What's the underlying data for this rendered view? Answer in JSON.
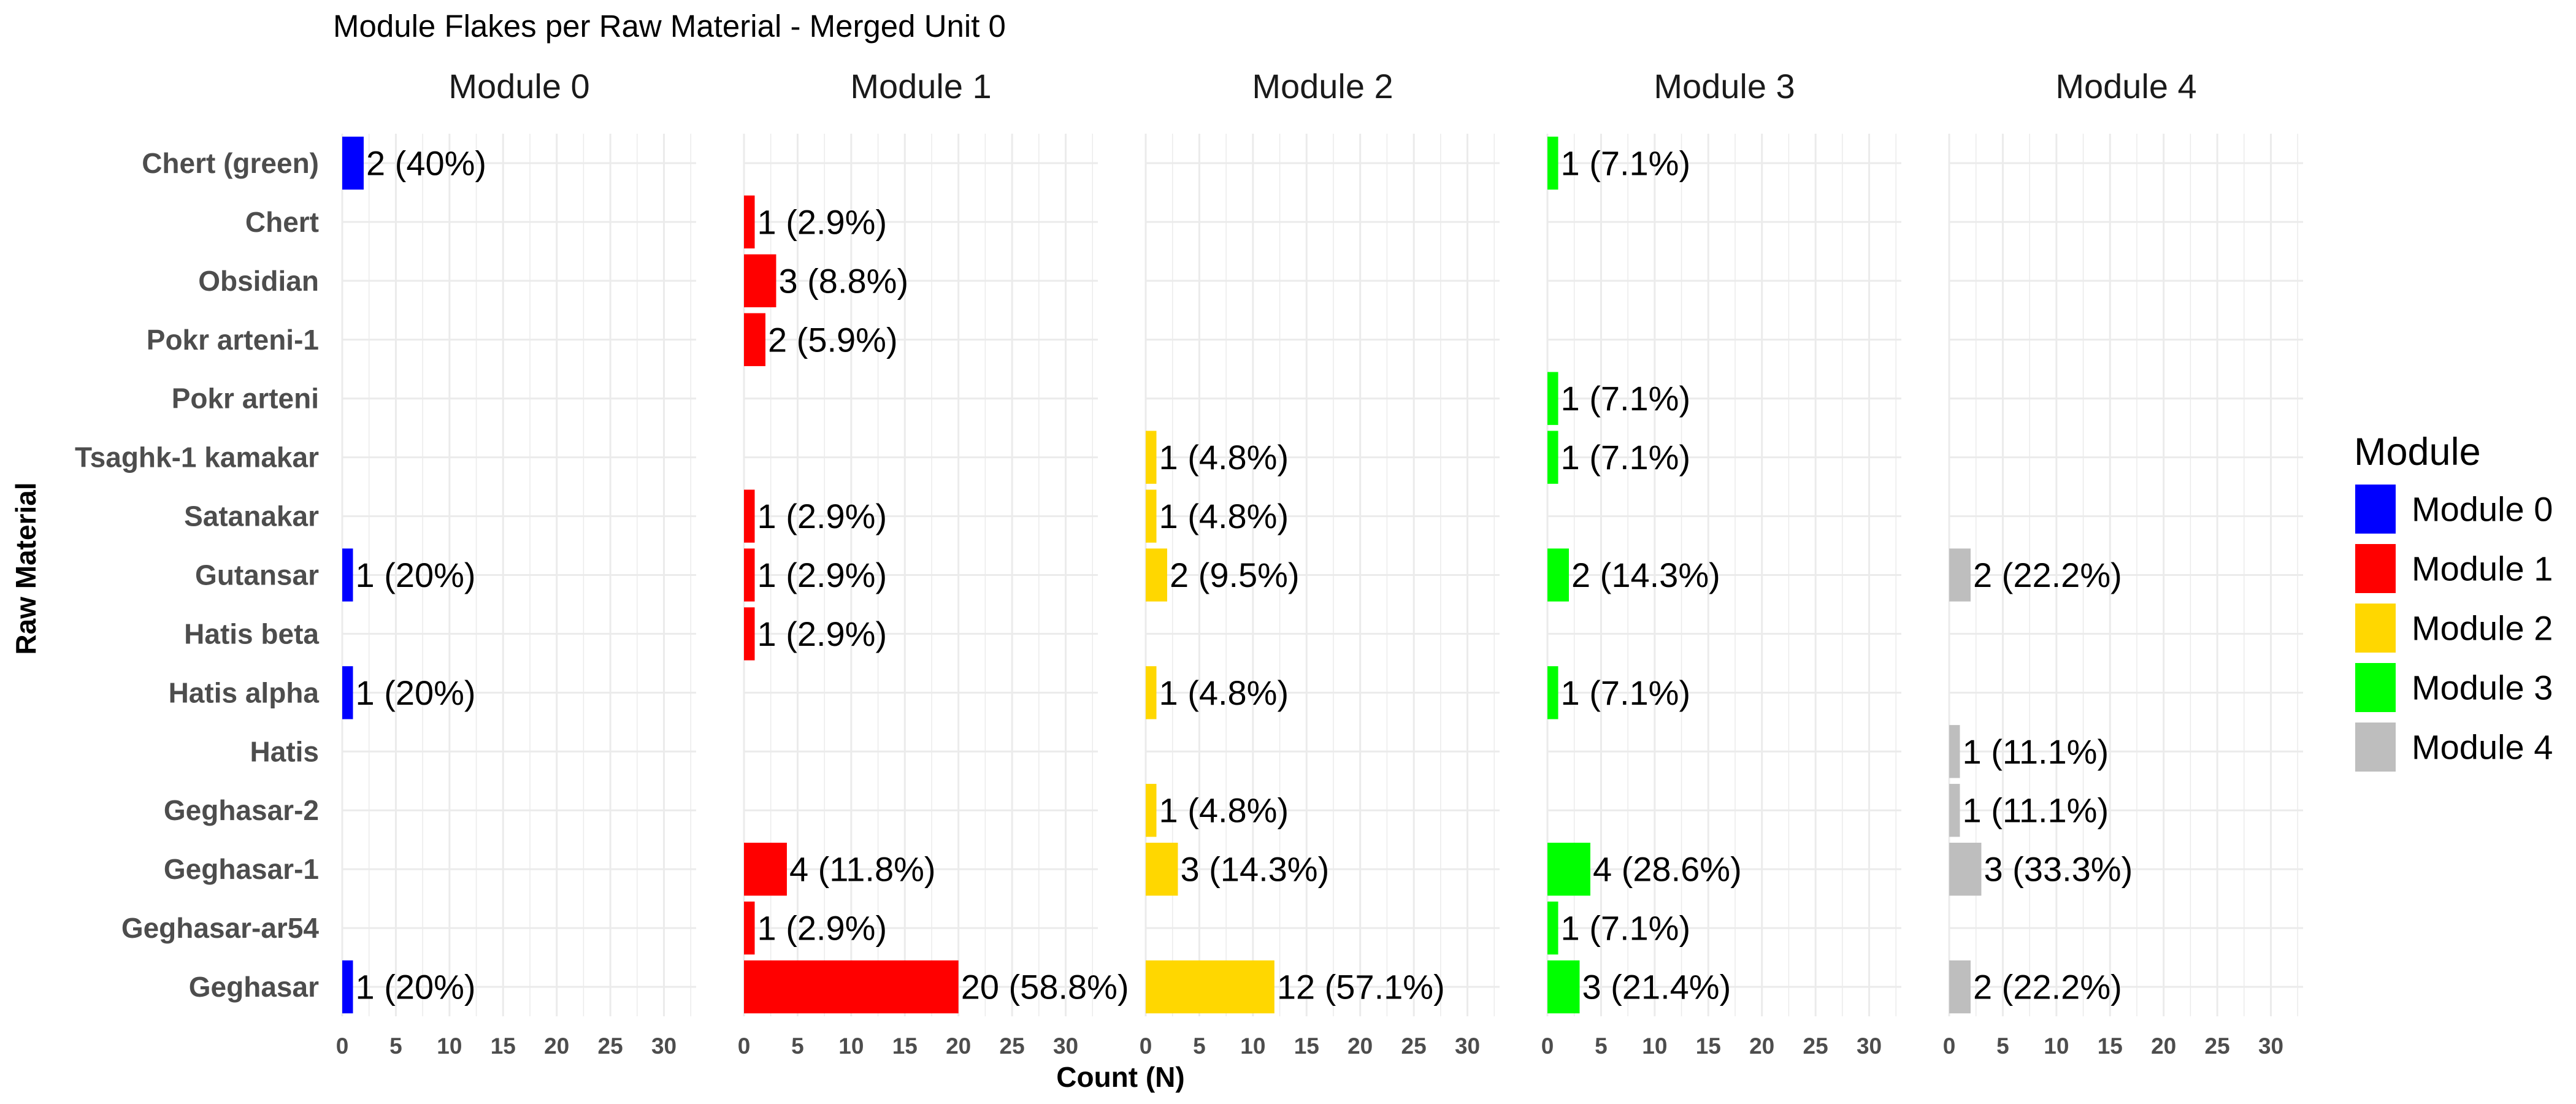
{
  "chart_data": {
    "type": "bar",
    "orientation": "horizontal",
    "facet": "Module",
    "title": "Module Flakes per Raw Material - Merged Unit 0",
    "xlabel": "Count (N)",
    "ylabel": "Raw Material",
    "xlim": [
      0,
      33
    ],
    "xticks": [
      "0",
      "5",
      "10",
      "15",
      "20",
      "25",
      "30"
    ],
    "grid": true,
    "legend": {
      "title": "Module",
      "position": "right",
      "items": [
        "Module 0",
        "Module 1",
        "Module 2",
        "Module 3",
        "Module 4"
      ]
    },
    "categories": [
      "Chert (green)",
      "Chert",
      "Obsidian",
      "Pokr arteni-1",
      "Pokr arteni",
      "Tsaghk-1 kamakar",
      "Satanakar",
      "Gutansar",
      "Hatis beta",
      "Hatis alpha",
      "Hatis",
      "Geghasar-2",
      "Geghasar-1",
      "Geghasar-ar54",
      "Geghasar"
    ],
    "series": [
      {
        "name": "Module 0",
        "color": "#0000ff",
        "bars": [
          {
            "category": "Chert (green)",
            "value": 2,
            "label": "2 (40%)"
          },
          {
            "category": "Gutansar",
            "value": 1,
            "label": "1 (20%)"
          },
          {
            "category": "Hatis alpha",
            "value": 1,
            "label": "1 (20%)"
          },
          {
            "category": "Geghasar",
            "value": 1,
            "label": "1 (20%)"
          }
        ]
      },
      {
        "name": "Module 1",
        "color": "#ff0000",
        "bars": [
          {
            "category": "Chert",
            "value": 1,
            "label": "1 (2.9%)"
          },
          {
            "category": "Obsidian",
            "value": 3,
            "label": "3 (8.8%)"
          },
          {
            "category": "Pokr arteni-1",
            "value": 2,
            "label": "2 (5.9%)"
          },
          {
            "category": "Satanakar",
            "value": 1,
            "label": "1 (2.9%)"
          },
          {
            "category": "Gutansar",
            "value": 1,
            "label": "1 (2.9%)"
          },
          {
            "category": "Hatis beta",
            "value": 1,
            "label": "1 (2.9%)"
          },
          {
            "category": "Geghasar-1",
            "value": 4,
            "label": "4 (11.8%)"
          },
          {
            "category": "Geghasar-ar54",
            "value": 1,
            "label": "1 (2.9%)"
          },
          {
            "category": "Geghasar",
            "value": 20,
            "label": "20 (58.8%)"
          }
        ]
      },
      {
        "name": "Module 2",
        "color": "#ffd700",
        "bars": [
          {
            "category": "Tsaghk-1 kamakar",
            "value": 1,
            "label": "1 (4.8%)"
          },
          {
            "category": "Satanakar",
            "value": 1,
            "label": "1 (4.8%)"
          },
          {
            "category": "Gutansar",
            "value": 2,
            "label": "2 (9.5%)"
          },
          {
            "category": "Hatis alpha",
            "value": 1,
            "label": "1 (4.8%)"
          },
          {
            "category": "Geghasar-2",
            "value": 1,
            "label": "1 (4.8%)"
          },
          {
            "category": "Geghasar-1",
            "value": 3,
            "label": "3 (14.3%)"
          },
          {
            "category": "Geghasar",
            "value": 12,
            "label": "12 (57.1%)"
          }
        ]
      },
      {
        "name": "Module 3",
        "color": "#00ff00",
        "bars": [
          {
            "category": "Chert (green)",
            "value": 1,
            "label": "1 (7.1%)"
          },
          {
            "category": "Pokr arteni",
            "value": 1,
            "label": "1 (7.1%)"
          },
          {
            "category": "Tsaghk-1 kamakar",
            "value": 1,
            "label": "1 (7.1%)"
          },
          {
            "category": "Gutansar",
            "value": 2,
            "label": "2 (14.3%)"
          },
          {
            "category": "Hatis alpha",
            "value": 1,
            "label": "1 (7.1%)"
          },
          {
            "category": "Geghasar-1",
            "value": 4,
            "label": "4 (28.6%)"
          },
          {
            "category": "Geghasar-ar54",
            "value": 1,
            "label": "1 (7.1%)"
          },
          {
            "category": "Geghasar",
            "value": 3,
            "label": "3 (21.4%)"
          }
        ]
      },
      {
        "name": "Module 4",
        "color": "#bebebe",
        "bars": [
          {
            "category": "Gutansar",
            "value": 2,
            "label": "2 (22.2%)"
          },
          {
            "category": "Hatis",
            "value": 1,
            "label": "1 (11.1%)"
          },
          {
            "category": "Geghasar-2",
            "value": 1,
            "label": "1 (11.1%)"
          },
          {
            "category": "Geghasar-1",
            "value": 3,
            "label": "3 (33.3%)"
          },
          {
            "category": "Geghasar",
            "value": 2,
            "label": "2 (22.2%)"
          }
        ]
      }
    ]
  }
}
